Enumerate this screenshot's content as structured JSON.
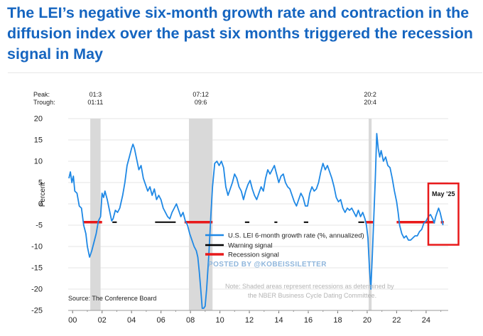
{
  "headline": "The LEI’s negative six-month growth rate and contraction in the diffusion index over the past six months triggered the recession signal in May",
  "chart_data": {
    "type": "line",
    "ylabel": "Percent",
    "ylim": [
      -25,
      20
    ],
    "xlim": [
      1999.7,
      2025.5
    ],
    "yticks": [
      20,
      15,
      10,
      5,
      0,
      -5,
      -10,
      -15,
      -20,
      -25
    ],
    "xticks": [
      {
        "x": 2000,
        "label": "00"
      },
      {
        "x": 2002,
        "label": "02"
      },
      {
        "x": 2004,
        "label": "04"
      },
      {
        "x": 2006,
        "label": "06"
      },
      {
        "x": 2008,
        "label": "08"
      },
      {
        "x": 2010,
        "label": "10"
      },
      {
        "x": 2012,
        "label": "12"
      },
      {
        "x": 2014,
        "label": "14"
      },
      {
        "x": 2016,
        "label": "16"
      },
      {
        "x": 2018,
        "label": "18"
      },
      {
        "x": 2020,
        "label": "20"
      },
      {
        "x": 2022,
        "label": "22"
      },
      {
        "x": 2024,
        "label": "24"
      }
    ],
    "grid": true,
    "peak_label": "Peak:",
    "trough_label": "Trough:",
    "recessions": [
      {
        "start": 2001.2,
        "end": 2001.9,
        "peak": "01:3",
        "trough": "01:11"
      },
      {
        "start": 2007.9,
        "end": 2009.5,
        "peak": "07:12",
        "trough": "09:6"
      },
      {
        "start": 2020.1,
        "end": 2020.3,
        "peak": "20:2",
        "trough": "20:4"
      }
    ],
    "series": [
      {
        "name": "U.S. LEI 6-month growth rate (%, annualized)",
        "color": "#1e88e5",
        "points": [
          [
            1999.75,
            6
          ],
          [
            1999.85,
            7.5
          ],
          [
            1999.95,
            5
          ],
          [
            2000.05,
            6.5
          ],
          [
            2000.15,
            3
          ],
          [
            2000.3,
            2.5
          ],
          [
            2000.45,
            -0.5
          ],
          [
            2000.6,
            -1
          ],
          [
            2000.75,
            -5
          ],
          [
            2000.9,
            -7
          ],
          [
            2001.0,
            -10
          ],
          [
            2001.15,
            -12.5
          ],
          [
            2001.3,
            -11
          ],
          [
            2001.45,
            -9
          ],
          [
            2001.6,
            -7
          ],
          [
            2001.75,
            -4
          ],
          [
            2001.9,
            -3
          ],
          [
            2002.0,
            2.5
          ],
          [
            2002.1,
            1.5
          ],
          [
            2002.2,
            3
          ],
          [
            2002.35,
            1
          ],
          [
            2002.5,
            -1.5
          ],
          [
            2002.65,
            -4
          ],
          [
            2002.75,
            -3.5
          ],
          [
            2002.9,
            -1.5
          ],
          [
            2003.05,
            -2
          ],
          [
            2003.2,
            -1
          ],
          [
            2003.4,
            2
          ],
          [
            2003.55,
            5
          ],
          [
            2003.7,
            9
          ],
          [
            2003.85,
            11
          ],
          [
            2004.0,
            13
          ],
          [
            2004.1,
            14
          ],
          [
            2004.2,
            13
          ],
          [
            2004.35,
            10.5
          ],
          [
            2004.5,
            8
          ],
          [
            2004.65,
            9
          ],
          [
            2004.8,
            6
          ],
          [
            2004.95,
            4.5
          ],
          [
            2005.1,
            3
          ],
          [
            2005.25,
            4
          ],
          [
            2005.4,
            2
          ],
          [
            2005.55,
            3.5
          ],
          [
            2005.7,
            1
          ],
          [
            2005.85,
            2
          ],
          [
            2006.0,
            1
          ],
          [
            2006.15,
            -1
          ],
          [
            2006.3,
            -2
          ],
          [
            2006.45,
            -3
          ],
          [
            2006.6,
            -3.5
          ],
          [
            2006.75,
            -2
          ],
          [
            2006.9,
            -1
          ],
          [
            2007.05,
            0
          ],
          [
            2007.2,
            -1.5
          ],
          [
            2007.35,
            -3
          ],
          [
            2007.5,
            -2
          ],
          [
            2007.65,
            -4
          ],
          [
            2007.8,
            -5
          ],
          [
            2007.95,
            -7
          ],
          [
            2008.1,
            -8.5
          ],
          [
            2008.25,
            -10
          ],
          [
            2008.4,
            -11
          ],
          [
            2008.5,
            -12.5
          ],
          [
            2008.6,
            -16
          ],
          [
            2008.7,
            -20
          ],
          [
            2008.8,
            -24.5
          ],
          [
            2008.9,
            -24.5
          ],
          [
            2009.0,
            -24
          ],
          [
            2009.1,
            -20
          ],
          [
            2009.25,
            -12
          ],
          [
            2009.4,
            -2
          ],
          [
            2009.5,
            4
          ],
          [
            2009.65,
            9.5
          ],
          [
            2009.8,
            10
          ],
          [
            2009.95,
            9
          ],
          [
            2010.1,
            10
          ],
          [
            2010.25,
            8.5
          ],
          [
            2010.4,
            4
          ],
          [
            2010.55,
            2
          ],
          [
            2010.7,
            3.5
          ],
          [
            2010.85,
            5
          ],
          [
            2011.0,
            7
          ],
          [
            2011.15,
            6
          ],
          [
            2011.3,
            4
          ],
          [
            2011.45,
            3
          ],
          [
            2011.6,
            1
          ],
          [
            2011.75,
            3
          ],
          [
            2011.9,
            4.5
          ],
          [
            2012.05,
            5.5
          ],
          [
            2012.2,
            3.5
          ],
          [
            2012.35,
            2
          ],
          [
            2012.5,
            1
          ],
          [
            2012.65,
            2.5
          ],
          [
            2012.8,
            4
          ],
          [
            2012.95,
            3
          ],
          [
            2013.1,
            6
          ],
          [
            2013.25,
            8
          ],
          [
            2013.4,
            7
          ],
          [
            2013.55,
            8
          ],
          [
            2013.7,
            9
          ],
          [
            2013.85,
            7
          ],
          [
            2014.0,
            5
          ],
          [
            2014.15,
            6.5
          ],
          [
            2014.3,
            7
          ],
          [
            2014.45,
            5
          ],
          [
            2014.6,
            4
          ],
          [
            2014.75,
            3.5
          ],
          [
            2014.9,
            2
          ],
          [
            2015.05,
            0.5
          ],
          [
            2015.2,
            -0.5
          ],
          [
            2015.35,
            1
          ],
          [
            2015.5,
            2.5
          ],
          [
            2015.65,
            1.5
          ],
          [
            2015.8,
            -0.5
          ],
          [
            2015.95,
            -0.5
          ],
          [
            2016.1,
            2.5
          ],
          [
            2016.25,
            4
          ],
          [
            2016.4,
            3
          ],
          [
            2016.55,
            3.5
          ],
          [
            2016.7,
            5
          ],
          [
            2016.85,
            7.5
          ],
          [
            2017.0,
            9.5
          ],
          [
            2017.15,
            8
          ],
          [
            2017.3,
            9
          ],
          [
            2017.45,
            7.5
          ],
          [
            2017.6,
            6
          ],
          [
            2017.75,
            4
          ],
          [
            2017.9,
            1.5
          ],
          [
            2018.05,
            0.5
          ],
          [
            2018.2,
            1
          ],
          [
            2018.35,
            -1
          ],
          [
            2018.5,
            -2
          ],
          [
            2018.65,
            -1
          ],
          [
            2018.8,
            -1.5
          ],
          [
            2018.95,
            -1
          ],
          [
            2019.1,
            -2
          ],
          [
            2019.25,
            -3
          ],
          [
            2019.4,
            -1.5
          ],
          [
            2019.55,
            -3
          ],
          [
            2019.7,
            -2
          ],
          [
            2019.85,
            -3.5
          ],
          [
            2019.95,
            -5
          ],
          [
            2020.05,
            -8
          ],
          [
            2020.15,
            -15
          ],
          [
            2020.25,
            -20
          ],
          [
            2020.35,
            -12
          ],
          [
            2020.45,
            -3
          ],
          [
            2020.55,
            6
          ],
          [
            2020.65,
            16.5
          ],
          [
            2020.75,
            13
          ],
          [
            2020.85,
            11
          ],
          [
            2020.95,
            12.5
          ],
          [
            2021.1,
            10
          ],
          [
            2021.25,
            11
          ],
          [
            2021.4,
            9
          ],
          [
            2021.55,
            8.5
          ],
          [
            2021.7,
            6
          ],
          [
            2021.85,
            3
          ],
          [
            2022.0,
            0.5
          ],
          [
            2022.1,
            -2
          ],
          [
            2022.2,
            -5
          ],
          [
            2022.35,
            -7
          ],
          [
            2022.5,
            -8
          ],
          [
            2022.65,
            -7.5
          ],
          [
            2022.8,
            -8.5
          ],
          [
            2022.95,
            -8.5
          ],
          [
            2023.1,
            -8
          ],
          [
            2023.25,
            -7.5
          ],
          [
            2023.4,
            -7.5
          ],
          [
            2023.55,
            -6.5
          ],
          [
            2023.7,
            -6
          ],
          [
            2023.85,
            -4.5
          ],
          [
            2024.0,
            -4
          ],
          [
            2024.15,
            -3
          ],
          [
            2024.3,
            -2.5
          ],
          [
            2024.45,
            -3.5
          ],
          [
            2024.55,
            -4.5
          ],
          [
            2024.65,
            -3
          ],
          [
            2024.75,
            -2
          ],
          [
            2024.85,
            -1
          ],
          [
            2024.95,
            -2
          ],
          [
            2025.05,
            -3.5
          ],
          [
            2025.15,
            -5
          ]
        ]
      },
      {
        "name": "Warning signal",
        "color": "#000000",
        "segments": [
          [
            2002.7,
            2003.0
          ],
          [
            2005.6,
            2007.0
          ],
          [
            2011.7,
            2012.0
          ],
          [
            2013.7,
            2013.9
          ],
          [
            2015.7,
            2016.0
          ],
          [
            2019.4,
            2019.8
          ],
          [
            2022.6,
            2023.4
          ]
        ],
        "value": -4.3
      },
      {
        "name": "Recession signal",
        "color": "#e8191a",
        "segments": [
          [
            2000.7,
            2002.0
          ],
          [
            2007.6,
            2009.5
          ],
          [
            2019.9,
            2020.4
          ],
          [
            2022.0,
            2024.6
          ],
          [
            2025.0,
            2025.2
          ]
        ],
        "value": -4.3
      }
    ],
    "annotation_box": {
      "x0": 2024.15,
      "x1": 2026.2,
      "y0": -9.6,
      "y1": 4.8,
      "color": "#e8191a"
    },
    "annotation_label": "May ’25",
    "source": "Source: The Conference Board",
    "note_line1": "Note: Shaded areas represent recessions as determined by",
    "note_line2": "the NBER Business Cycle Dating Committee.",
    "watermark": "POSTED BY @KOBEISSILETTER"
  }
}
